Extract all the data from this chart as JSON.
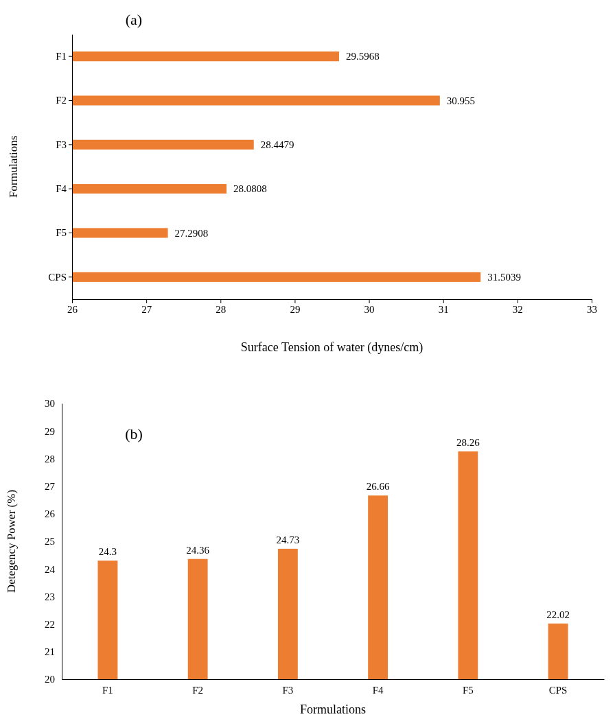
{
  "chart_data": [
    {
      "type": "bar",
      "orientation": "horizontal",
      "title": "(a)",
      "xlabel": "Surface Tension of water (dynes/cm)",
      "ylabel": "Formulations",
      "categories": [
        "F1",
        "F2",
        "F3",
        "F4",
        "F5",
        "CPS"
      ],
      "values": [
        29.5968,
        30.955,
        28.4479,
        28.0808,
        27.2908,
        31.5039
      ],
      "color": "#ed7d31",
      "xlim": [
        26,
        33
      ],
      "xticks": [
        26,
        27,
        28,
        29,
        30,
        31,
        32,
        33
      ],
      "data_labels": true,
      "grid": false
    },
    {
      "type": "bar",
      "title": "(b)",
      "xlabel": "Formulations",
      "ylabel": "Detegency Power (%)",
      "categories": [
        "F1",
        "F2",
        "F3",
        "F4",
        "F5",
        "CPS"
      ],
      "values": [
        24.3,
        24.36,
        24.73,
        26.66,
        28.26,
        22.02
      ],
      "color": "#ed7d31",
      "ylim": [
        20,
        30
      ],
      "yticks": [
        20,
        21,
        22,
        23,
        24,
        25,
        26,
        27,
        28,
        29,
        30
      ],
      "data_labels": true,
      "grid": false
    }
  ]
}
